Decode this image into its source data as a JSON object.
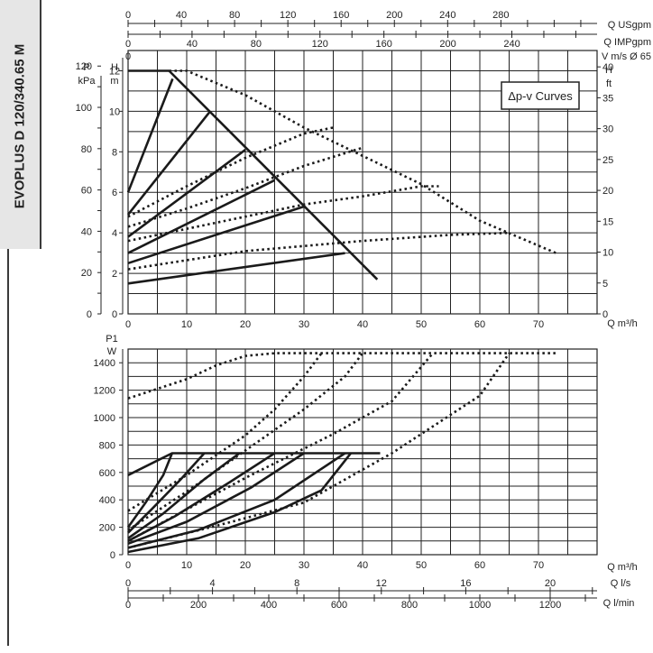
{
  "model": "EVOPLUS D 120/340.65 M",
  "colors": {
    "line": "#1a1a1a",
    "grid": "#222222",
    "sidebar": "#e6e6e6"
  },
  "chart_data": [
    {
      "type": "line",
      "title": "Δp-v Curves",
      "xlabel": "Q m³/h",
      "x_ticks": [
        0,
        10,
        20,
        30,
        40,
        50,
        60,
        70
      ],
      "xlim": [
        0,
        80
      ],
      "ylabel_left": [
        "H",
        "m"
      ],
      "ylabel_pressure": [
        "P",
        "kPa"
      ],
      "ylabel_right": [
        "H",
        "ft"
      ],
      "ylim": [
        0,
        13
      ],
      "h_m_ticks": [
        0,
        2,
        4,
        6,
        8,
        10,
        12
      ],
      "p_kpa_ticks": [
        0,
        20,
        40,
        60,
        80,
        100,
        120
      ],
      "h_ft_ticks": [
        0,
        5,
        10,
        15,
        20,
        25,
        30,
        35,
        40
      ],
      "top_axes": [
        {
          "label": "Q USgpm",
          "ticks": [
            0,
            40,
            80,
            120,
            160,
            200,
            240,
            280
          ]
        },
        {
          "label": "Q IMPgpm",
          "ticks": [
            0,
            40,
            80,
            120,
            160,
            200,
            240
          ]
        },
        {
          "label": "V m/s Ø 65",
          "ticks": [
            0
          ]
        }
      ],
      "max_curve_solid": [
        [
          0,
          12
        ],
        [
          7,
          12
        ]
      ],
      "limit_line": [
        [
          7,
          12
        ],
        [
          42.5,
          1.7
        ]
      ],
      "solid_series": [
        {
          "values": [
            [
              0,
              6
            ],
            [
              7.6,
              11.6
            ]
          ]
        },
        {
          "values": [
            [
              0,
              4.9
            ],
            [
              14,
              10
            ]
          ]
        },
        {
          "values": [
            [
              0,
              3.8
            ],
            [
              20,
              8.1
            ]
          ]
        },
        {
          "values": [
            [
              0,
              3.0
            ],
            [
              25,
              6.6
            ]
          ]
        },
        {
          "values": [
            [
              0,
              2.5
            ],
            [
              30,
              5.3
            ]
          ]
        },
        {
          "values": [
            [
              0,
              1.5
            ],
            [
              37,
              3.0
            ]
          ]
        }
      ],
      "dotted_series": [
        {
          "values": [
            [
              7,
              12
            ],
            [
              10,
              12.0
            ],
            [
              20,
              10.8
            ],
            [
              30,
              9.2
            ],
            [
              40,
              7.8
            ],
            [
              50,
              6.4
            ],
            [
              60,
              4.6
            ],
            [
              73,
              3.0
            ]
          ]
        },
        {
          "values": [
            [
              0,
              4.8
            ],
            [
              10,
              6.3
            ],
            [
              20,
              7.7
            ],
            [
              30,
              8.9
            ],
            [
              35,
              9.2
            ]
          ]
        },
        {
          "values": [
            [
              0,
              4.3
            ],
            [
              10,
              5.2
            ],
            [
              20,
              6.2
            ],
            [
              30,
              7.3
            ],
            [
              40,
              8.2
            ]
          ]
        },
        {
          "values": [
            [
              0,
              3.6
            ],
            [
              10,
              4.2
            ],
            [
              20,
              4.8
            ],
            [
              30,
              5.4
            ],
            [
              40,
              5.8
            ],
            [
              50,
              6.3
            ],
            [
              53,
              6.3
            ]
          ]
        },
        {
          "values": [
            [
              0,
              2.2
            ],
            [
              20,
              3.1
            ],
            [
              40,
              3.6
            ],
            [
              55,
              3.9
            ],
            [
              65,
              4.0
            ]
          ]
        }
      ]
    },
    {
      "type": "line",
      "xlabel": "Q m³/h",
      "x_ticks": [
        0,
        10,
        20,
        30,
        40,
        50,
        60,
        70
      ],
      "xlim": [
        0,
        80
      ],
      "ylabel": [
        "P1",
        "W"
      ],
      "y_ticks": [
        0,
        200,
        400,
        600,
        800,
        1000,
        1200,
        1400
      ],
      "ylim": [
        0,
        1500
      ],
      "bottom_axes": [
        {
          "label": "Q l/s",
          "ticks": [
            0,
            4,
            8,
            12,
            16,
            20
          ]
        },
        {
          "label": "Q l/min",
          "ticks": [
            0,
            200,
            400,
            600,
            800,
            1000,
            1200
          ]
        }
      ],
      "solid_series": [
        {
          "values": [
            [
              0,
              580
            ],
            [
              7.5,
              740
            ],
            [
              43,
              740
            ]
          ]
        },
        {
          "values": [
            [
              0,
              200
            ],
            [
              3,
              380
            ],
            [
              6,
              580
            ],
            [
              7.5,
              740
            ]
          ]
        },
        {
          "values": [
            [
              0,
              160
            ],
            [
              4,
              330
            ],
            [
              9,
              550
            ],
            [
              13,
              740
            ]
          ]
        },
        {
          "values": [
            [
              0,
              120
            ],
            [
              6,
              300
            ],
            [
              13,
              550
            ],
            [
              19,
              740
            ]
          ]
        },
        {
          "values": [
            [
              0,
              100
            ],
            [
              8,
              280
            ],
            [
              17,
              520
            ],
            [
              25,
              740
            ]
          ]
        },
        {
          "values": [
            [
              0,
              80
            ],
            [
              10,
              240
            ],
            [
              21,
              490
            ],
            [
              30,
              740
            ]
          ]
        },
        {
          "values": [
            [
              0,
              50
            ],
            [
              12,
              180
            ],
            [
              25,
              400
            ],
            [
              37,
              740
            ]
          ]
        },
        {
          "values": [
            [
              0,
              20
            ],
            [
              12,
              120
            ],
            [
              25,
              310
            ],
            [
              33,
              470
            ],
            [
              38,
              740
            ]
          ]
        }
      ],
      "dotted_series": [
        {
          "values": [
            [
              0,
              1140
            ],
            [
              10,
              1280
            ],
            [
              15,
              1380
            ],
            [
              20,
              1450
            ],
            [
              25,
              1470
            ],
            [
              73,
              1470
            ]
          ]
        },
        {
          "values": [
            [
              0,
              320
            ],
            [
              10,
              580
            ],
            [
              20,
              870
            ],
            [
              25,
              1060
            ],
            [
              30,
              1300
            ],
            [
              33,
              1470
            ]
          ]
        },
        {
          "values": [
            [
              0,
              180
            ],
            [
              10,
              460
            ],
            [
              20,
              760
            ],
            [
              30,
              1060
            ],
            [
              37,
              1300
            ],
            [
              40,
              1470
            ]
          ]
        },
        {
          "values": [
            [
              0,
              100
            ],
            [
              20,
              560
            ],
            [
              35,
              880
            ],
            [
              45,
              1120
            ],
            [
              52,
              1470
            ]
          ]
        },
        {
          "values": [
            [
              0,
              50
            ],
            [
              15,
              210
            ],
            [
              30,
              380
            ],
            [
              45,
              740
            ],
            [
              60,
              1160
            ],
            [
              65,
              1470
            ]
          ]
        }
      ]
    }
  ]
}
